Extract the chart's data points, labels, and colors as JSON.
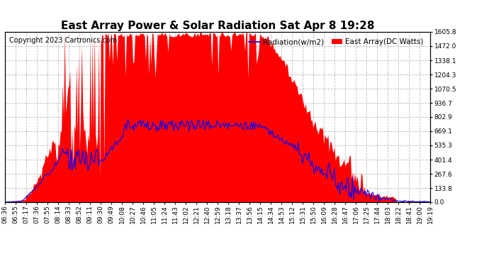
{
  "title": "East Array Power & Solar Radiation Sat Apr 8 19:28",
  "copyright": "Copyright 2023 Cartronics.com",
  "legend_radiation": "Radiation(w/m2)",
  "legend_east_array": "East Array(DC Watts)",
  "legend_radiation_color": "blue",
  "legend_east_array_color": "red",
  "ylabel_right_values": [
    0.0,
    133.8,
    267.6,
    401.4,
    535.3,
    669.1,
    802.9,
    936.7,
    1070.5,
    1204.3,
    1338.1,
    1472.0,
    1605.8
  ],
  "ylim": [
    0.0,
    1605.8
  ],
  "background_color": "#ffffff",
  "plot_bg_color": "#ffffff",
  "grid_color": "#bbbbbb",
  "title_fontsize": 11,
  "tick_label_fontsize": 6.5,
  "copyright_fontsize": 7,
  "x_tick_labels": [
    "06:36",
    "06:55",
    "07:17",
    "07:36",
    "07:55",
    "08:14",
    "08:33",
    "08:52",
    "09:11",
    "09:30",
    "09:49",
    "10:08",
    "10:27",
    "10:46",
    "11:05",
    "11:24",
    "11:43",
    "12:02",
    "12:21",
    "12:40",
    "12:59",
    "13:18",
    "13:37",
    "13:56",
    "14:15",
    "14:34",
    "14:53",
    "15:12",
    "15:31",
    "15:50",
    "16:09",
    "16:28",
    "16:47",
    "17:06",
    "17:25",
    "17:44",
    "18:03",
    "18:22",
    "18:41",
    "19:00",
    "19:19"
  ]
}
